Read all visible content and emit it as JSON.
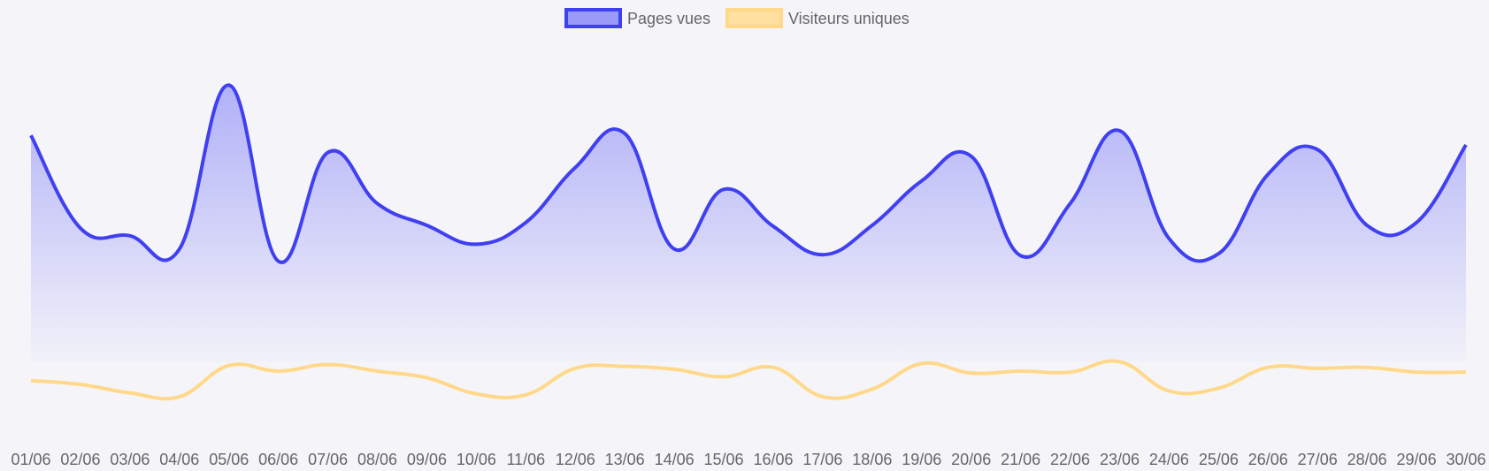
{
  "chart_data": {
    "type": "area",
    "x": [
      "01/06",
      "02/06",
      "03/06",
      "04/06",
      "05/06",
      "06/06",
      "07/06",
      "08/06",
      "09/06",
      "10/06",
      "11/06",
      "12/06",
      "13/06",
      "14/06",
      "15/06",
      "16/06",
      "17/06",
      "18/06",
      "19/06",
      "20/06",
      "21/06",
      "22/06",
      "23/06",
      "24/06",
      "25/06",
      "26/06",
      "27/06",
      "28/06",
      "29/06",
      "30/06"
    ],
    "series": [
      {
        "name": "Pages vues",
        "color": "#4040f0",
        "fill": "#9a9af8",
        "values": [
          3190,
          2210,
          2130,
          1990,
          3720,
          1860,
          3010,
          2470,
          2240,
          2040,
          2270,
          2850,
          3210,
          1990,
          2620,
          2230,
          1930,
          2240,
          2710,
          2970,
          1920,
          2470,
          3240,
          2100,
          1940,
          2780,
          3040,
          2240,
          2270,
          3090
        ]
      },
      {
        "name": "Visiteurs uniques",
        "color": "#ffd88a",
        "fill": "#ffe0a0",
        "values": [
          600,
          560,
          470,
          430,
          760,
          700,
          770,
          700,
          630,
          460,
          450,
          730,
          750,
          720,
          640,
          740,
          430,
          510,
          780,
          680,
          700,
          690,
          800,
          490,
          520,
          740,
          730,
          740,
          690,
          690
        ]
      }
    ],
    "ylim": [
      0,
      4200
    ],
    "grid": false,
    "legend": "top"
  }
}
